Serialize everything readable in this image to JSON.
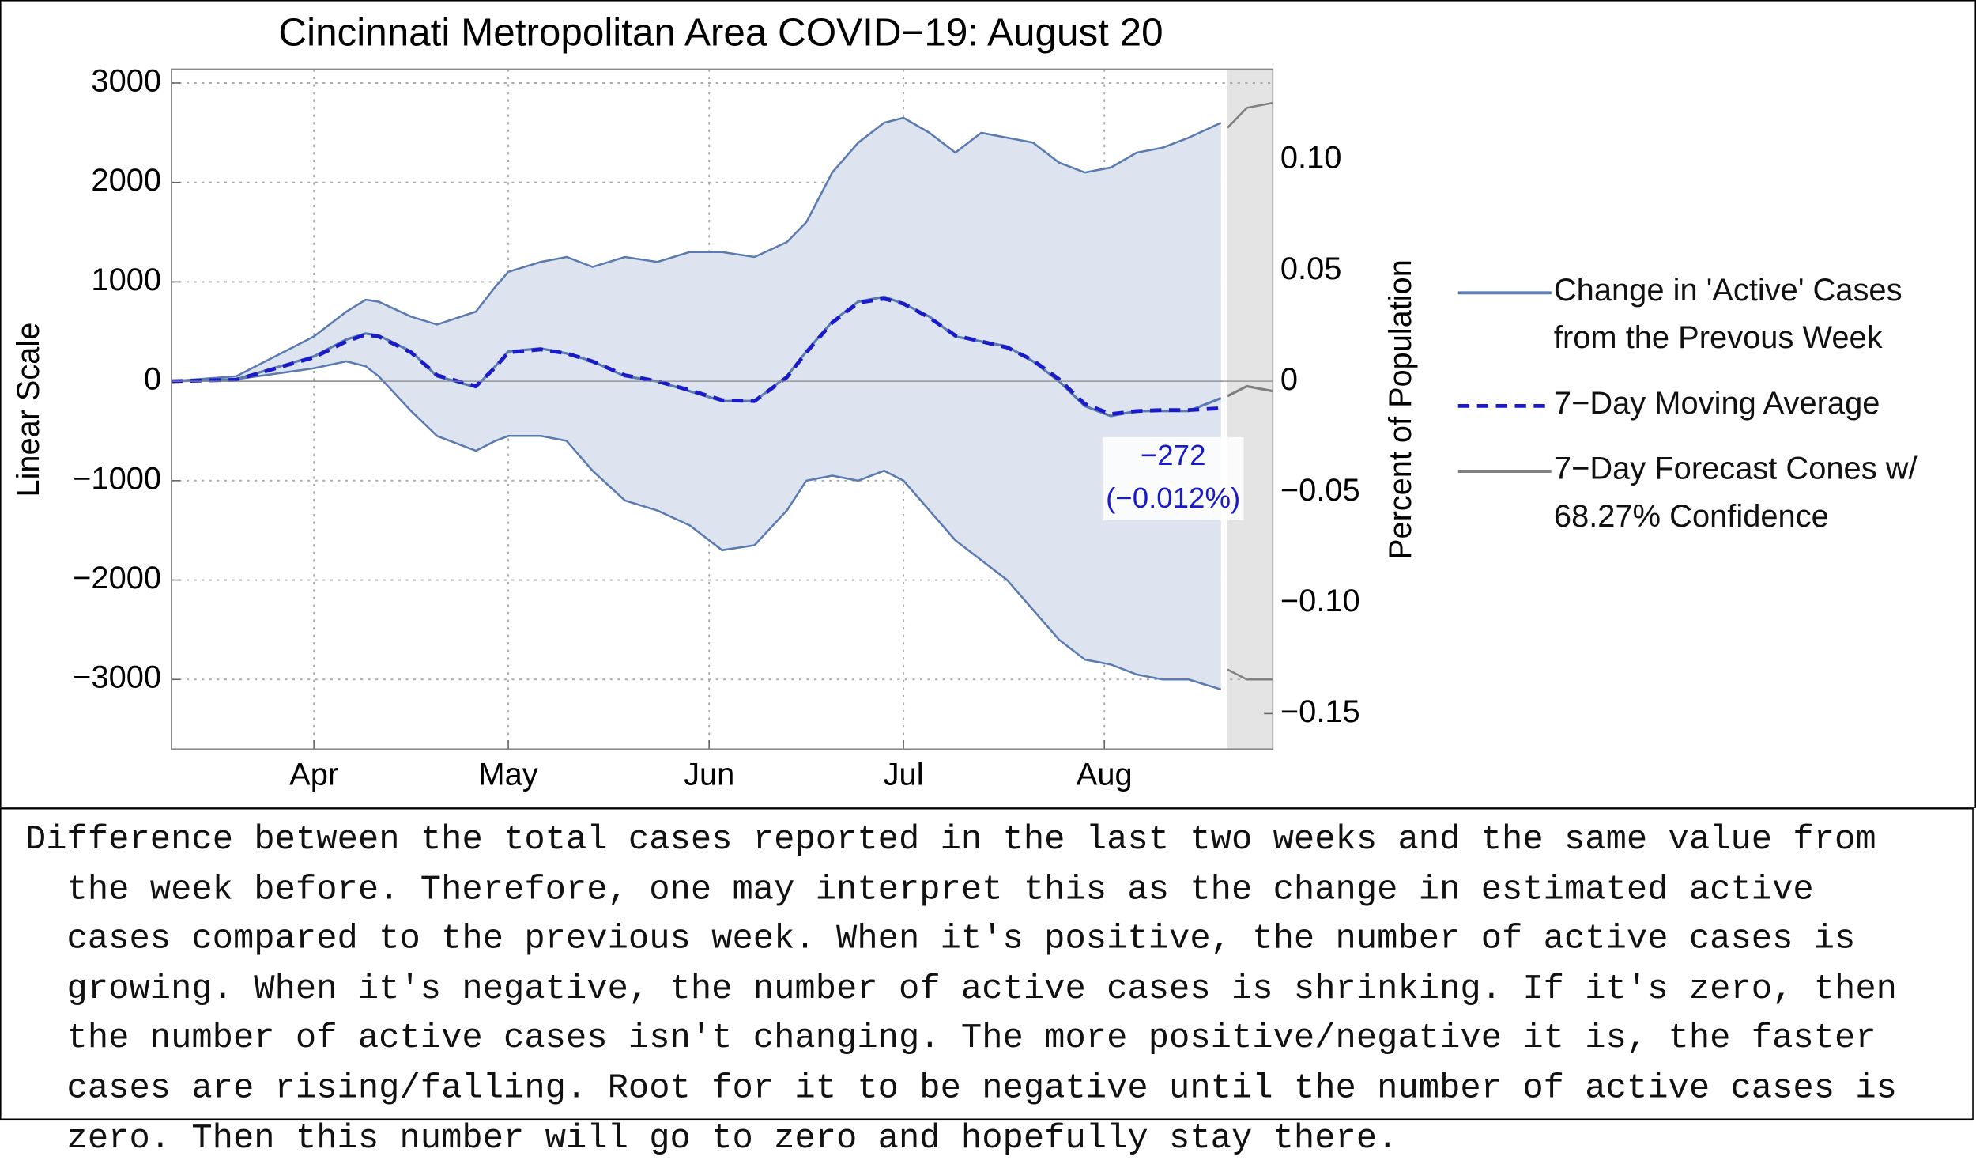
{
  "chart_data": {
    "type": "line",
    "title": "Cincinnati Metropolitan Area COVID−19: August 20",
    "y_label": "Linear Scale",
    "y2_label": "Percent of Population",
    "description": "Difference between the total cases reported in the last two weeks and the same value from the week before. Therefore, one may interpret this as the change in estimated active cases compared to the previous week. When it's positive, the number of active cases is growing. When it's negative, the number of active cases is shrinking. If it's zero, then the number of active cases isn't changing. The more positive/negative it is, the faster cases are rising/falling. Root for it to be negative until the number of active cases is zero. Then this number will go to zero and hopefully stay there.",
    "annotations": [
      "−272",
      "(−0.012%)"
    ],
    "xlim": [
      70,
      240
    ],
    "xticks": [
      {
        "value": 92,
        "label": "Apr"
      },
      {
        "value": 122,
        "label": "May"
      },
      {
        "value": 153,
        "label": "Jun"
      },
      {
        "value": 183,
        "label": "Jul"
      },
      {
        "value": 214,
        "label": "Aug"
      }
    ],
    "ylim": [
      -3700,
      3140
    ],
    "yticks": [
      {
        "value": -3000,
        "label": "−3000"
      },
      {
        "value": -2000,
        "label": "−2000"
      },
      {
        "value": -1000,
        "label": "−1000"
      },
      0,
      1000,
      2000,
      3000
    ],
    "y2lim": [
      -0.166,
      0.141
    ],
    "y2ticks": [
      {
        "value": -0.15,
        "label": "−0.15"
      },
      {
        "value": -0.1,
        "label": "−0.10"
      },
      {
        "value": -0.05,
        "label": "−0.05"
      },
      0,
      0.05,
      {
        "value": 0.1,
        "label": "0.10"
      }
    ],
    "grid": true,
    "legend": "right",
    "band_color": "#dde4ef",
    "forecast_background": "#e4e4e4",
    "x": [
      70,
      80,
      92,
      97,
      100,
      102,
      107,
      111,
      117,
      120,
      122,
      127,
      131,
      135,
      140,
      145,
      150,
      155,
      160,
      165,
      168,
      172,
      176,
      180,
      183,
      187,
      191,
      195,
      199,
      203,
      207,
      211,
      215,
      219,
      223,
      227,
      232
    ],
    "series": [
      {
        "name": "Change in 'Active' Cases from the Prevous Week",
        "color": "#5b7bb0",
        "style": "solid",
        "values": [
          0,
          20,
          250,
          420,
          480,
          460,
          300,
          50,
          -60,
          150,
          300,
          330,
          280,
          200,
          50,
          0,
          -100,
          -200,
          -200,
          50,
          300,
          600,
          800,
          850,
          780,
          650,
          450,
          400,
          350,
          200,
          0,
          -250,
          -350,
          -300,
          -300,
          -300,
          -170
        ],
        "upper": [
          0,
          50,
          450,
          700,
          820,
          800,
          650,
          570,
          700,
          950,
          1100,
          1200,
          1250,
          1150,
          1250,
          1200,
          1300,
          1300,
          1250,
          1400,
          1600,
          2100,
          2400,
          2600,
          2650,
          2500,
          2300,
          2500,
          2450,
          2400,
          2200,
          2100,
          2150,
          2300,
          2350,
          2450,
          2600
        ],
        "lower": [
          0,
          20,
          130,
          200,
          150,
          50,
          -300,
          -550,
          -700,
          -600,
          -550,
          -550,
          -600,
          -900,
          -1200,
          -1300,
          -1450,
          -1700,
          -1650,
          -1300,
          -1000,
          -950,
          -1000,
          -900,
          -1000,
          -1300,
          -1600,
          -1800,
          -2000,
          -2300,
          -2600,
          -2800,
          -2850,
          -2950,
          -3000,
          -3000,
          -3100
        ]
      },
      {
        "name": "7−Day Moving Average",
        "color": "#1a1ac8",
        "style": "dashed",
        "values": [
          0,
          15,
          240,
          400,
          470,
          450,
          290,
          60,
          -50,
          140,
          290,
          320,
          280,
          200,
          60,
          0,
          -90,
          -190,
          -200,
          40,
          290,
          590,
          790,
          830,
          780,
          640,
          460,
          400,
          340,
          210,
          20,
          -230,
          -330,
          -300,
          -290,
          -290,
          -272
        ]
      },
      {
        "name": "7−Day Forecast Cones w/ 68.27% Confidence",
        "color": "#808080",
        "style": "solid",
        "x": [
          233,
          236,
          240
        ],
        "values": [
          -150,
          -50,
          -100
        ],
        "upper": [
          2550,
          2750,
          2800
        ],
        "lower": [
          -2900,
          -3000,
          -3000
        ]
      }
    ]
  }
}
